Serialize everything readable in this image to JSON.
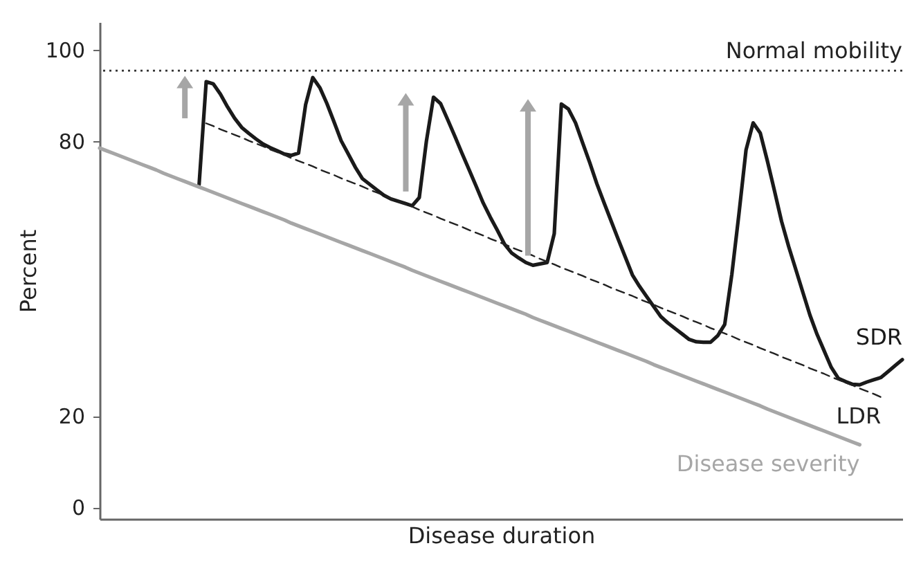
{
  "chart_data": {
    "type": "line",
    "xlabel": "Disease duration",
    "ylabel": "Percent",
    "categories": [
      null,
      null,
      null,
      null,
      null,
      null,
      null,
      null,
      null,
      null,
      null,
      null,
      null,
      null,
      null,
      null,
      null,
      null,
      null,
      null,
      null,
      null,
      null,
      null,
      null,
      null,
      null,
      null,
      null,
      null,
      null,
      null,
      null,
      null,
      null,
      null,
      null,
      null,
      null,
      null,
      null,
      null,
      null,
      null,
      null,
      null,
      null,
      null,
      null,
      null,
      null,
      null,
      null,
      null,
      null,
      null,
      null,
      null,
      null,
      null,
      null,
      null,
      null,
      null,
      null,
      null,
      null,
      null,
      null,
      null,
      null,
      null,
      null,
      null,
      null,
      null,
      null,
      null,
      null,
      null,
      null,
      null,
      null,
      null,
      null,
      null,
      null,
      null,
      null,
      null,
      null,
      null,
      null,
      null,
      null,
      null,
      null,
      null,
      null,
      null,
      null,
      null,
      null,
      null,
      null,
      null,
      null,
      null,
      null,
      null,
      null,
      null,
      null,
      null
    ],
    "ylim": [
      -2.5,
      106
    ],
    "yticks": [
      0,
      20,
      80,
      100
    ],
    "tick_labels": "y",
    "series": [
      {
        "name": "SDR",
        "color": "#1a1a1a",
        "values": [
          null,
          null,
          null,
          null,
          null,
          null,
          null,
          null,
          null,
          null,
          null,
          null,
          null,
          null,
          70.5,
          93,
          92.5,
          90.3,
          87.5,
          85,
          83,
          81.7,
          80.5,
          79.4,
          78.6,
          77.9,
          77.2,
          76.9,
          77.4,
          88,
          93.9,
          91.7,
          88.2,
          84.2,
          80.1,
          77.2,
          74.3,
          71.8,
          70.6,
          69.4,
          68.2,
          67.4,
          66.9,
          66.4,
          65.9,
          67.7,
          80,
          89.6,
          88.2,
          84.7,
          81.1,
          77.4,
          73.8,
          70.2,
          66.5,
          63.4,
          60.5,
          57.5,
          55.6,
          54.5,
          53.5,
          52.9,
          53.2,
          53.5,
          59.8,
          88.1,
          87,
          84,
          79.6,
          75.3,
          70.7,
          66.6,
          62.6,
          58.6,
          54.7,
          50.8,
          48.3,
          46.1,
          43.9,
          41.7,
          40.3,
          39.1,
          37.9,
          36.7,
          36.2,
          36.1,
          36.1,
          37.5,
          40,
          50.9,
          64.1,
          78.1,
          84,
          81.8,
          75.7,
          69.2,
          62.5,
          57,
          52,
          47,
          42,
          37.8,
          34.2,
          30.6,
          28.2,
          27.5,
          26.9,
          26.8,
          27.4,
          27.9,
          28.4,
          29.7,
          31,
          32.3
        ]
      },
      {
        "name": "LDR",
        "color": "#222222",
        "line_style": "dashed",
        "values": [
          null,
          null,
          null,
          null,
          null,
          null,
          null,
          null,
          null,
          null,
          null,
          null,
          null,
          null,
          null,
          83.9,
          83.3,
          82.6,
          82.0,
          81.4,
          80.8,
          80.1,
          79.5,
          78.9,
          78.2,
          77.6,
          77.0,
          76.3,
          75.7,
          75.1,
          74.5,
          73.8,
          73.2,
          72.6,
          71.9,
          71.3,
          70.7,
          70.1,
          69.4,
          68.8,
          68.2,
          67.5,
          66.9,
          66.3,
          65.7,
          65.0,
          64.4,
          63.8,
          63.1,
          62.5,
          61.9,
          61.3,
          60.6,
          60.0,
          59.4,
          58.7,
          58.1,
          57.5,
          56.8,
          56.2,
          55.6,
          55.0,
          54.3,
          53.7,
          53.1,
          52.4,
          51.8,
          51.2,
          50.6,
          49.9,
          49.3,
          48.7,
          48.0,
          47.4,
          46.8,
          46.2,
          45.5,
          44.9,
          44.3,
          43.6,
          43.0,
          42.4,
          41.8,
          41.1,
          40.5,
          39.9,
          39.2,
          38.6,
          38.0,
          37.4,
          36.7,
          36.1,
          35.5,
          34.8,
          34.2,
          33.6,
          32.9,
          32.3,
          31.7,
          31.1,
          30.4,
          29.8,
          29.2,
          28.5,
          27.9,
          27.3,
          26.7,
          26.0,
          25.4,
          24.8,
          24.1,
          null,
          null,
          null
        ]
      },
      {
        "name": "Disease severity",
        "color": "#a6a6a6",
        "values": [
          78.5,
          77.9,
          77.3,
          76.7,
          76.1,
          75.5,
          74.9,
          74.3,
          73.7,
          73.0,
          72.4,
          71.8,
          71.2,
          70.6,
          70.0,
          69.4,
          68.8,
          68.2,
          67.6,
          67.0,
          66.4,
          65.8,
          65.2,
          64.6,
          64.0,
          63.4,
          62.8,
          62.1,
          61.5,
          60.9,
          60.3,
          59.7,
          59.1,
          58.5,
          57.9,
          57.3,
          56.7,
          56.1,
          55.5,
          54.9,
          54.3,
          53.7,
          53.1,
          52.5,
          51.8,
          51.2,
          50.6,
          50.0,
          49.4,
          48.8,
          48.2,
          47.6,
          47.0,
          46.4,
          45.8,
          45.2,
          44.6,
          44.0,
          43.4,
          42.8,
          42.2,
          41.5,
          40.9,
          40.3,
          39.7,
          39.1,
          38.5,
          37.9,
          37.3,
          36.7,
          36.1,
          35.5,
          34.9,
          34.3,
          33.7,
          33.1,
          32.5,
          31.9,
          31.2,
          30.6,
          30.0,
          29.4,
          28.8,
          28.2,
          27.6,
          27.0,
          26.4,
          25.8,
          25.2,
          24.6,
          24.0,
          23.4,
          22.8,
          22.2,
          21.5,
          20.9,
          20.3,
          19.7,
          19.1,
          18.5,
          17.9,
          17.3,
          16.7,
          16.1,
          15.5,
          14.9,
          14.3,
          13.7,
          null,
          null,
          null,
          null,
          null,
          null
        ]
      }
    ],
    "ref_lines": [
      {
        "axis": "y",
        "value": 95.4,
        "label": "Normal mobility",
        "line_style": "dotted",
        "color": "#333333"
      }
    ]
  }
}
